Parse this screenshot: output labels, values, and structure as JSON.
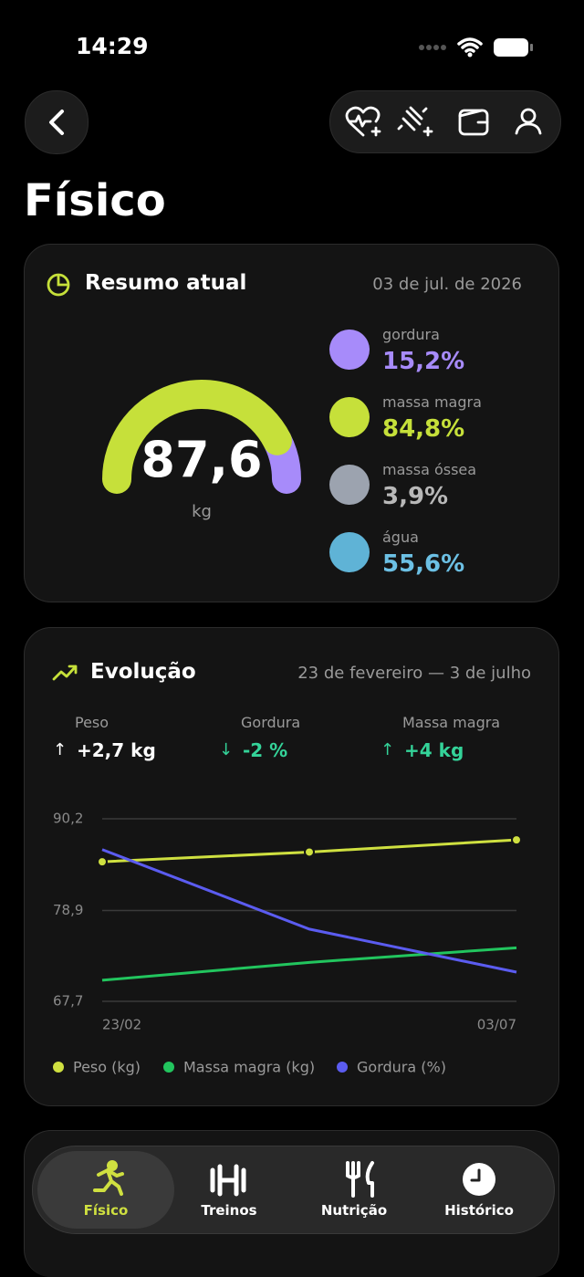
{
  "status": {
    "time": "14:29"
  },
  "header": {
    "title": "Físico"
  },
  "summary": {
    "title": "Resumo atual",
    "date": "03 de jul. de 2026",
    "gauge": {
      "value": "87,6",
      "unit": "kg"
    },
    "metrics": [
      {
        "name": "gordura",
        "value": "15,2%"
      },
      {
        "name": "massa magra",
        "value": "84,8%"
      },
      {
        "name": "massa óssea",
        "value": "3,9%"
      },
      {
        "name": "água",
        "value": "55,6%"
      }
    ]
  },
  "evolution": {
    "title": "Evolução",
    "range": "23 de fevereiro — 3 de julho",
    "stats": [
      {
        "name": "Peso",
        "change": "+2,7 kg"
      },
      {
        "name": "Gordura",
        "change": "-2 %"
      },
      {
        "name": "Massa magra",
        "change": "+4 kg"
      }
    ]
  },
  "chart_data": {
    "type": "line",
    "categories": [
      "23/02",
      null,
      "03/07"
    ],
    "ylim": [
      67.7,
      90.2
    ],
    "yticks": [
      {
        "value": 90.2,
        "label": "90,2"
      },
      {
        "value": 78.9,
        "label": "78,9"
      },
      {
        "value": 67.7,
        "label": "67,7"
      }
    ],
    "grid": true,
    "series": [
      {
        "name": "Peso (kg)",
        "color": "#cfe040",
        "markers": true,
        "values": [
          84.9,
          86.1,
          87.6
        ]
      },
      {
        "name": "Massa magra (kg)",
        "color": "#22c55e",
        "markers": false,
        "values": [
          70.3,
          72.5,
          74.3
        ]
      },
      {
        "name": "Gordura (%)",
        "color": "#5b5cf0",
        "markers": false,
        "values": [
          86.4,
          76.6,
          71.3
        ]
      }
    ]
  },
  "nav": {
    "items": [
      "Físico",
      "Treinos",
      "Nutrição",
      "Histórico"
    ]
  }
}
